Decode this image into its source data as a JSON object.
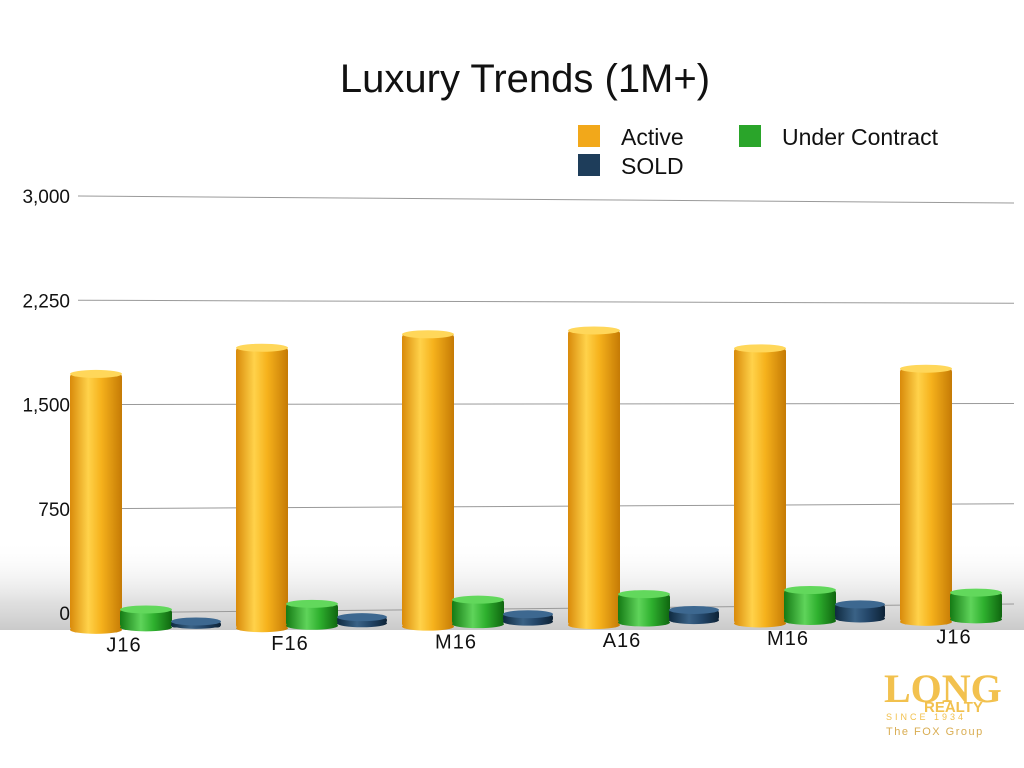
{
  "chart_data": {
    "type": "bar",
    "title": "Luxury Trends (1M+)",
    "categories": [
      "J16",
      "F16",
      "M16",
      "A16",
      "M16",
      "J16"
    ],
    "series": [
      {
        "name": "Active",
        "values": [
          1720,
          1910,
          2010,
          2040,
          1910,
          1760
        ],
        "color": "#f2a81a"
      },
      {
        "name": "Under Contract",
        "values": [
          100,
          130,
          150,
          180,
          200,
          170
        ],
        "color": "#2aa52a"
      },
      {
        "name": "SOLD",
        "values": [
          10,
          30,
          40,
          60,
          90,
          null
        ],
        "color": "#1e3d5a"
      }
    ],
    "y_ticks": [
      "3,000",
      "2,250",
      "1,500",
      "750",
      "0"
    ],
    "ylim": [
      0,
      3000
    ],
    "grid": true,
    "legend_position": "top-right"
  },
  "logo": {
    "name": "LONG REALTY",
    "word_main": "LONG",
    "word_sub": "REALTY",
    "since": "SINCE 1934",
    "group": "The FOX Group"
  }
}
